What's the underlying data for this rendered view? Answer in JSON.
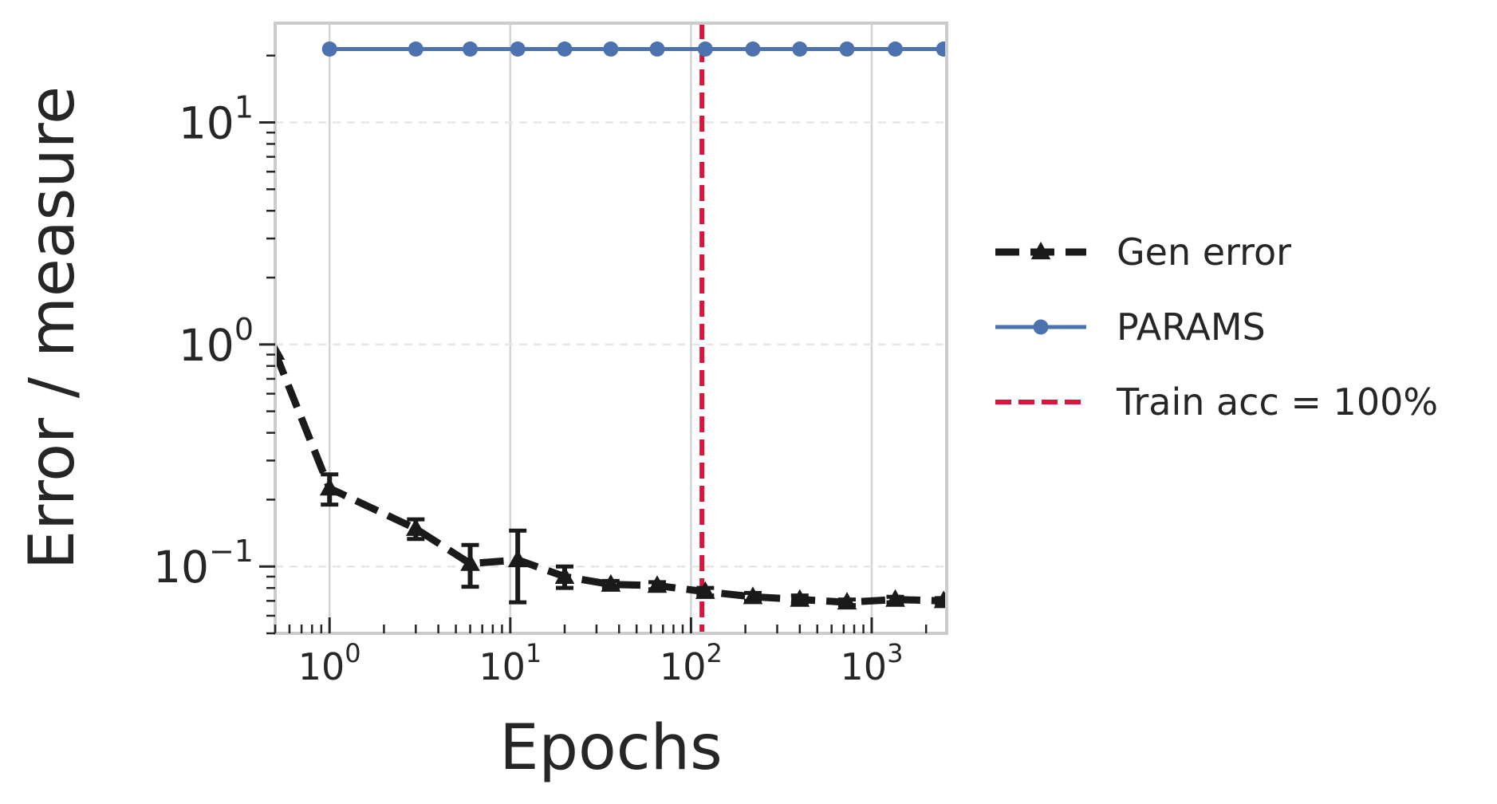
{
  "chart_data": {
    "type": "line",
    "title": "",
    "xlabel": "Epochs",
    "ylabel": "Error / measure",
    "xscale": "log",
    "yscale": "log",
    "xlim": [
      0.5,
      2600
    ],
    "ylim": [
      0.05,
      28
    ],
    "grid": "vertical major gridlines solid, horizontal major gridlines dashed",
    "legend_position": "right, outside plot",
    "x_ticks": [
      {
        "value": 1,
        "base": "10",
        "exp": "0"
      },
      {
        "value": 10,
        "base": "10",
        "exp": "1"
      },
      {
        "value": 100,
        "base": "10",
        "exp": "2"
      },
      {
        "value": 1000,
        "base": "10",
        "exp": "3"
      }
    ],
    "y_ticks": [
      {
        "value": 0.1,
        "base": "10",
        "exp": "−1"
      },
      {
        "value": 1,
        "base": "10",
        "exp": "0"
      },
      {
        "value": 10,
        "base": "10",
        "exp": "1"
      }
    ],
    "series": [
      {
        "name": "Gen error",
        "color": "#1a1a1a",
        "style": "dashed",
        "marker": "triangle",
        "points": [
          {
            "x": 0.5,
            "y": 0.92,
            "err": 0
          },
          {
            "x": 1,
            "y": 0.225,
            "err": 0.035
          },
          {
            "x": 3,
            "y": 0.148,
            "err": 0.015
          },
          {
            "x": 6,
            "y": 0.103,
            "err": 0.022
          },
          {
            "x": 11,
            "y": 0.107,
            "err": 0.038
          },
          {
            "x": 20,
            "y": 0.09,
            "err": 0.01
          },
          {
            "x": 36,
            "y": 0.083,
            "err": 0.003
          },
          {
            "x": 65,
            "y": 0.082,
            "err": 0.003
          },
          {
            "x": 120,
            "y": 0.077,
            "err": 0.003
          },
          {
            "x": 220,
            "y": 0.073,
            "err": 0.003
          },
          {
            "x": 400,
            "y": 0.071,
            "err": 0.003
          },
          {
            "x": 730,
            "y": 0.069,
            "err": 0.002
          },
          {
            "x": 1350,
            "y": 0.071,
            "err": 0.002
          },
          {
            "x": 2500,
            "y": 0.07,
            "err": 0.002
          }
        ]
      },
      {
        "name": "PARAMS",
        "color": "#4c72b0",
        "style": "solid",
        "marker": "circle",
        "points": [
          {
            "x": 1,
            "y": 21.4
          },
          {
            "x": 3,
            "y": 21.4
          },
          {
            "x": 6,
            "y": 21.4
          },
          {
            "x": 11,
            "y": 21.4
          },
          {
            "x": 20,
            "y": 21.4
          },
          {
            "x": 36,
            "y": 21.4
          },
          {
            "x": 65,
            "y": 21.4
          },
          {
            "x": 120,
            "y": 21.4
          },
          {
            "x": 220,
            "y": 21.4
          },
          {
            "x": 400,
            "y": 21.4
          },
          {
            "x": 730,
            "y": 21.4
          },
          {
            "x": 1350,
            "y": 21.4
          },
          {
            "x": 2500,
            "y": 21.4
          }
        ]
      }
    ],
    "vlines": [
      {
        "name": "Train acc = 100%",
        "x": 115,
        "color": "#dc143c",
        "style": "dashed"
      }
    ],
    "legend": [
      {
        "label": "Gen error",
        "color": "#1a1a1a",
        "style": "dashed",
        "marker": "triangle"
      },
      {
        "label": "PARAMS",
        "color": "#4c72b0",
        "style": "solid",
        "marker": "circle"
      },
      {
        "label": "Train acc = 100%",
        "color": "#dc143c",
        "style": "dashed",
        "marker": "none"
      }
    ]
  }
}
